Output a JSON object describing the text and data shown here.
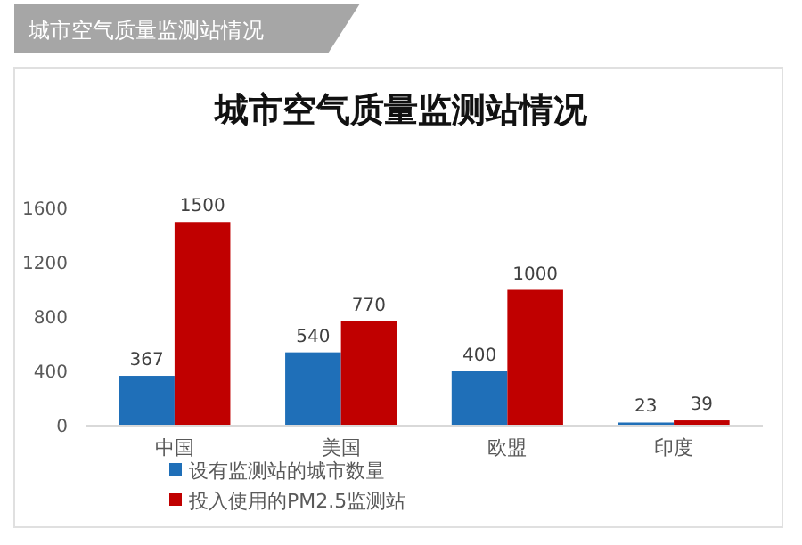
{
  "chart_data": {
    "type": "bar",
    "title": "城市空气质量监测站情况",
    "annotations": [
      "城市空气质量监测站情况"
    ],
    "categories": [
      "中国",
      "美国",
      "欧盟",
      "印度"
    ],
    "series": [
      {
        "name": "设有监测站的城市数量",
        "color": "#1f6fb8",
        "values": [
          367,
          540,
          400,
          23
        ]
      },
      {
        "name": "投入使用的PM2.5监测站",
        "color": "#c00000",
        "values": [
          1500,
          770,
          1000,
          39
        ]
      }
    ],
    "ylim": [
      0,
      1600
    ],
    "yticks": [
      0,
      400,
      800,
      1200,
      1600
    ],
    "grid": false,
    "legend": "bottom left",
    "data_labels": true
  }
}
